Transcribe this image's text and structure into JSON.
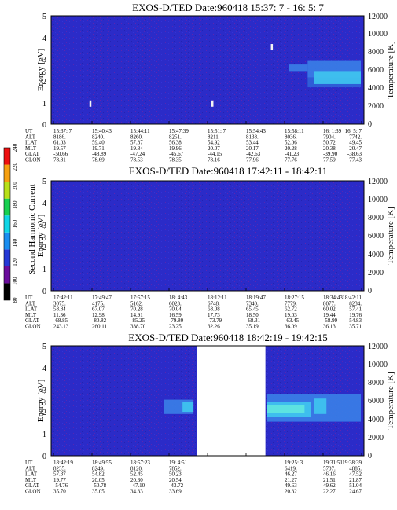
{
  "chart_data": [
    {
      "type": "heatmap",
      "title": "EXOS-D/TED   Date:960418  15:37: 7 - 16: 5: 7",
      "ylabel": "Energy [eV]",
      "y2label": "Temperature [K]",
      "ylim": [
        0,
        5
      ],
      "y_ticks": [
        "0",
        "1",
        "2",
        "3",
        "4",
        "5"
      ],
      "y2lim": [
        0,
        12000
      ],
      "y2_ticks": [
        "0",
        "2000",
        "4000",
        "6000",
        "8000",
        "10000",
        "12000"
      ],
      "background_color": "#2b2bc8",
      "features": [
        {
          "kind": "band",
          "t_start": 0.76,
          "t_end": 0.82,
          "e_low": 2.45,
          "e_high": 2.75,
          "color": "#3a7ee6"
        },
        {
          "kind": "band",
          "t_start": 0.82,
          "t_end": 0.99,
          "e_low": 2.15,
          "e_high": 2.95,
          "color": "#3a7ee6"
        },
        {
          "kind": "band",
          "t_start": 0.82,
          "t_end": 0.99,
          "e_low": 1.7,
          "e_high": 2.15,
          "color": "#2f62d8"
        },
        {
          "kind": "band",
          "t_start": 0.84,
          "t_end": 0.99,
          "e_low": 1.85,
          "e_high": 2.45,
          "color": "#3fc4ef"
        },
        {
          "kind": "spot",
          "t": 0.705,
          "e": 3.55,
          "color": "#f4f4f4"
        },
        {
          "kind": "spot",
          "t": 0.125,
          "e": 0.95,
          "color": "#f4f4f4"
        },
        {
          "kind": "spot",
          "t": 0.515,
          "e": 0.95,
          "color": "#f4f4f4"
        }
      ],
      "ephemeris": {
        "labels": [
          "UT",
          "ALT",
          "ILAT",
          "MLT",
          "GLAT",
          "GLON"
        ],
        "columns": [
          [
            "15:37: 7",
            "8186.",
            "61.03",
            "19.57",
            "-50.66",
            "78.81"
          ],
          [
            "15:40:43",
            "8240.",
            "59.40",
            "19.71",
            "-48.89",
            "78.69"
          ],
          [
            "15:44:11",
            "8260.",
            "57.87",
            "19.84",
            "-47.24",
            "78.53"
          ],
          [
            "15:47:39",
            "8251.",
            "56.38",
            "19.96",
            "-45.67",
            "78.35"
          ],
          [
            "15:51: 7",
            "8211.",
            "54.92",
            "20.07",
            "-44.15",
            "78.16"
          ],
          [
            "15:54:43",
            "8138.",
            "53.44",
            "20.17",
            "-42.63",
            "77.96"
          ],
          [
            "15:58:11",
            "8036.",
            "52.06",
            "20.28",
            "-41.23",
            "77.76"
          ],
          [
            "16: 1:39",
            "7904.",
            "50.72",
            "20.38",
            "-39.90",
            "77.59"
          ],
          [
            "16: 5: 7",
            "7742.",
            "49.45",
            "20.47",
            "-38.63",
            "77.43"
          ]
        ]
      }
    },
    {
      "type": "heatmap",
      "title": "EXOS-D/TED   Date:960418  17:42:11 - 18:42:11",
      "ylabel": "Energy [eV]",
      "y2label": "Temperature [K]",
      "ylim": [
        0,
        5
      ],
      "y_ticks": [
        "0",
        "1",
        "2",
        "3",
        "4",
        "5"
      ],
      "y2lim": [
        0,
        12000
      ],
      "y2_ticks": [
        "0",
        "2000",
        "4000",
        "6000",
        "8000",
        "10000",
        "12000"
      ],
      "background_color": "#2b2bc8",
      "features": [],
      "ephemeris": {
        "labels": [
          "UT",
          "ALT",
          "ILAT",
          "MLT",
          "GLAT",
          "GLON"
        ],
        "columns": [
          [
            "17:42:11",
            "3075.",
            "58.84",
            "11.36",
            "-68.85",
            "243.13"
          ],
          [
            "17:49:47",
            "4175.",
            "67.07",
            "12.98",
            "-80.82",
            "260.11"
          ],
          [
            "17:57:15",
            "5162.",
            "70.28",
            "14.91",
            "-85.25",
            "338.70"
          ],
          [
            "18: 4:43",
            "6023.",
            "70.04",
            "16.59",
            "-79.80",
            "23.25"
          ],
          [
            "18:12:11",
            "6748.",
            "68.08",
            "17.73",
            "-73.79",
            "32.26"
          ],
          [
            "18:19:47",
            "7340.",
            "65.45",
            "18.50",
            "-68.31",
            "35.19"
          ],
          [
            "18:27:15",
            "7779.",
            "62.72",
            "19.03",
            "-63.45",
            "36.09"
          ],
          [
            "18:34:43",
            "8077.",
            "60.02",
            "19.44",
            "-58.99",
            "36.13"
          ],
          [
            "18:42:11",
            "8234.",
            "57.41",
            "19.76",
            "-54.83",
            "35.71"
          ]
        ]
      }
    },
    {
      "type": "heatmap",
      "title": "EXOS-D/TED   Date:960418  18:42:19 - 19:42:15",
      "ylabel": "Energy [eV]",
      "y2label": "Temperature [K]",
      "ylim": [
        0,
        5
      ],
      "y_ticks": [
        "0",
        "1",
        "2",
        "3",
        "4",
        "5"
      ],
      "y2lim": [
        0,
        12000
      ],
      "y2_ticks": [
        "0",
        "2000",
        "4000",
        "6000",
        "8000",
        "10000",
        "12000"
      ],
      "background_color": "#2b2bc8",
      "data_gap": {
        "t_start": 0.465,
        "t_end": 0.685
      },
      "features": [
        {
          "kind": "band",
          "t_start": 0.36,
          "t_end": 0.455,
          "e_low": 1.9,
          "e_high": 2.55,
          "color": "#3a7ee6"
        },
        {
          "kind": "band",
          "t_start": 0.42,
          "t_end": 0.455,
          "e_low": 2.0,
          "e_high": 2.45,
          "color": "#3fc4ef"
        },
        {
          "kind": "band",
          "t_start": 0.69,
          "t_end": 0.99,
          "e_low": 1.55,
          "e_high": 2.8,
          "color": "#3a7ee6"
        },
        {
          "kind": "band",
          "t_start": 0.69,
          "t_end": 0.83,
          "e_low": 1.75,
          "e_high": 2.45,
          "color": "#3fc4ef"
        },
        {
          "kind": "band",
          "t_start": 0.69,
          "t_end": 0.81,
          "e_low": 1.95,
          "e_high": 2.3,
          "color": "#5fe6df"
        },
        {
          "kind": "band",
          "t_start": 0.84,
          "t_end": 0.88,
          "e_low": 1.9,
          "e_high": 2.6,
          "color": "#3fc4ef"
        }
      ],
      "ephemeris": {
        "labels": [
          "UT",
          "ALT",
          "ILAT",
          "MLT",
          "GLAT",
          "GLON"
        ],
        "columns": [
          [
            "18:42:19",
            "8235.",
            "57.37",
            "19.77",
            "-54.76",
            "35.70"
          ],
          [
            "18:49:55",
            "8249.",
            "54.82",
            "20.05",
            "-50.78",
            "35.05"
          ],
          [
            "18:57:23",
            "8120.",
            "52.45",
            "20.30",
            "-47.10",
            "34.33"
          ],
          [
            "19: 4:51",
            "7852.",
            "50.23",
            "20.54",
            "-43.72",
            "33.69"
          ],
          [
            "",
            "",
            "",
            "",
            "",
            ""
          ],
          [
            "",
            "",
            "",
            "",
            "",
            ""
          ],
          [
            "19:25: 3",
            "6419.",
            "46.27",
            "21.27",
            "49.63",
            "20.32"
          ],
          [
            "19:31:51",
            "5707.",
            "46.16",
            "21.51",
            "49.62",
            "22.27"
          ],
          [
            "19:38:39",
            "4885.",
            "47.52",
            "21.87",
            "51.04",
            "24.67"
          ]
        ]
      }
    }
  ],
  "colorbar": {
    "label": "Second Harmonic Current",
    "ticks": [
      "80",
      "100",
      "120",
      "140",
      "160",
      "180",
      "200",
      "220",
      "240"
    ],
    "colors": [
      "#000000",
      "#6a0c9c",
      "#2438d6",
      "#1a8ef0",
      "#10d6e6",
      "#18d050",
      "#b8e018",
      "#f6a010",
      "#ee1010"
    ]
  }
}
